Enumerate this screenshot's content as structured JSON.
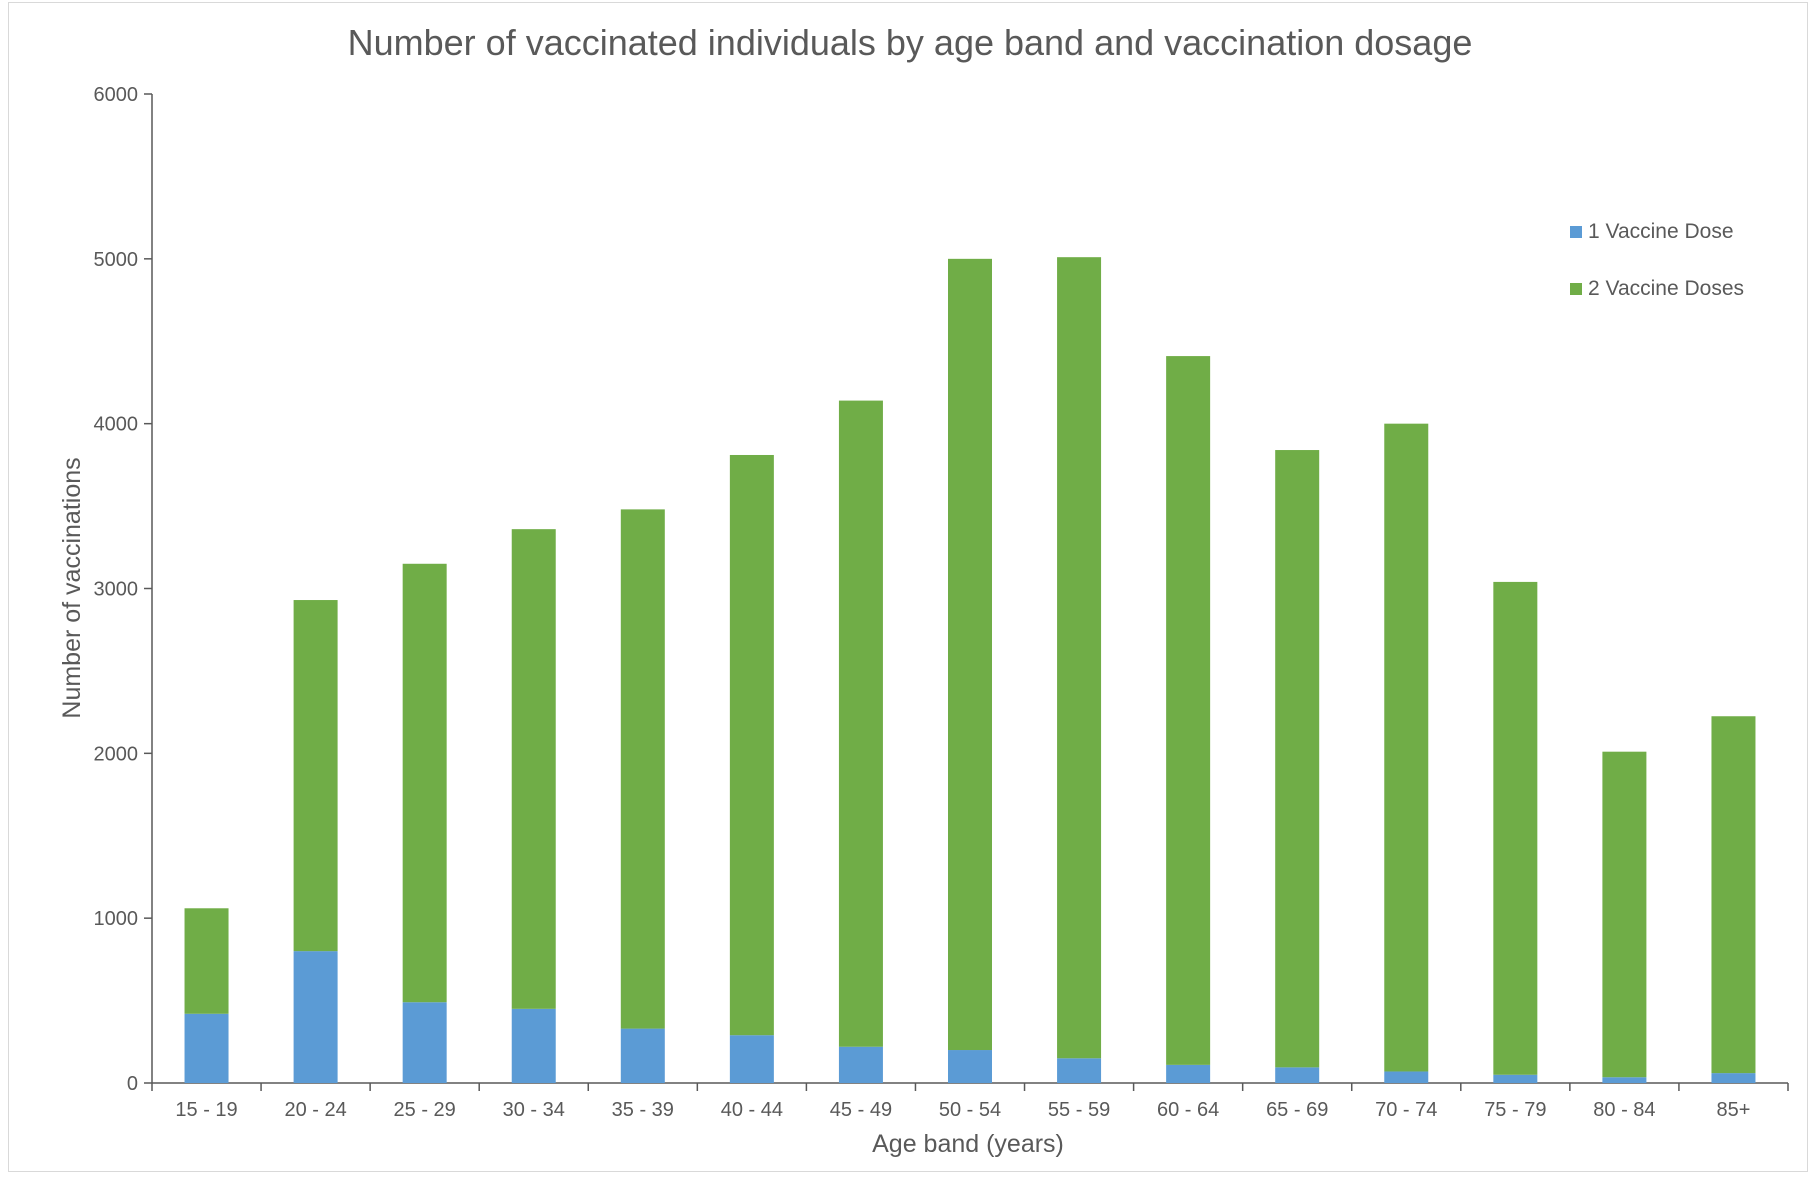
{
  "chart_data": {
    "type": "bar",
    "stacked": true,
    "title": "Number of vaccinated individuals by age band and vaccination dosage",
    "xlabel": "Age band (years)",
    "ylabel": "Number of vaccinations",
    "ylim": [
      0,
      6000
    ],
    "yticks": [
      "0",
      "1000",
      "2000",
      "3000",
      "4000",
      "5000",
      "6000"
    ],
    "grid": false,
    "legend_position": "right",
    "categories": [
      "15 - 19",
      "20 - 24",
      "25 - 29",
      "30 - 34",
      "35 - 39",
      "40 - 44",
      "45 - 49",
      "50 - 54",
      "55 - 59",
      "60 - 64",
      "65 - 69",
      "70 - 74",
      "75 - 79",
      "80 - 84",
      "85+"
    ],
    "series": [
      {
        "name": "1 Vaccine Dose",
        "color": "#5b9bd5",
        "values": [
          420,
          800,
          490,
          450,
          330,
          290,
          220,
          200,
          150,
          110,
          95,
          70,
          50,
          35,
          60
        ]
      },
      {
        "name": "2 Vaccine Doses",
        "color": "#70ad47",
        "values": [
          640,
          2130,
          2660,
          2910,
          3150,
          3520,
          3920,
          4800,
          4860,
          4300,
          3745,
          3930,
          2990,
          1975,
          2165
        ]
      }
    ]
  }
}
